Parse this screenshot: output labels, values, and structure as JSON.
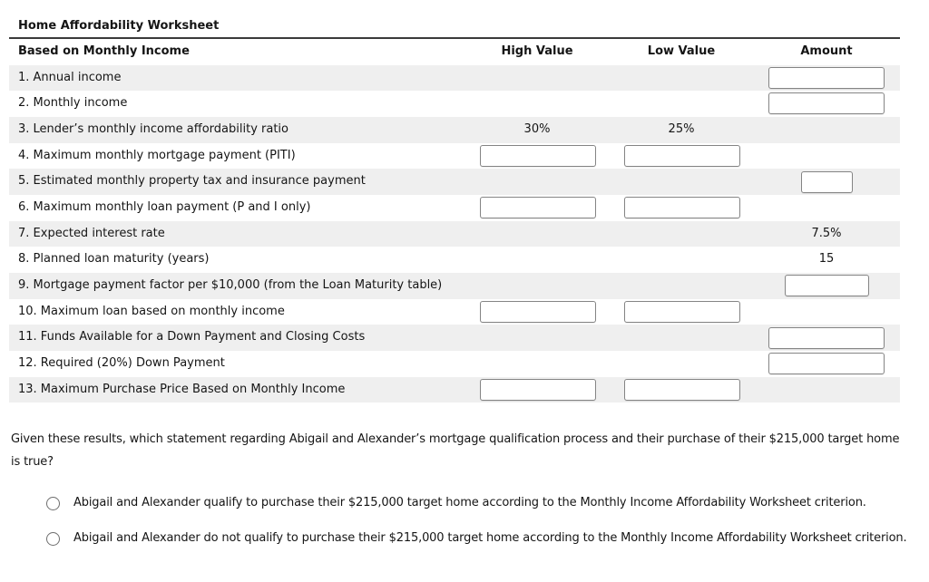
{
  "worksheet": {
    "title": "Home Affordability Worksheet",
    "header": {
      "based_label": "Based on Monthly Income",
      "high": "High Value",
      "low": "Low Value",
      "amount": "Amount"
    },
    "rows": [
      {
        "id": "annual-income",
        "label": "1. Annual income",
        "amount": {
          "kind": "input",
          "size": "lg",
          "value": ""
        }
      },
      {
        "id": "monthly-income",
        "label": "2. Monthly income",
        "amount": {
          "kind": "input",
          "size": "lg",
          "value": ""
        }
      },
      {
        "id": "affordability-ratio",
        "label": "3. Lender’s monthly income affordability ratio",
        "high": {
          "kind": "text",
          "value": "30%"
        },
        "low": {
          "kind": "text",
          "value": "25%"
        }
      },
      {
        "id": "max-piti-payment",
        "label": "4. Maximum monthly mortgage payment (PITI)",
        "high": {
          "kind": "input",
          "value": ""
        },
        "low": {
          "kind": "input",
          "value": ""
        }
      },
      {
        "id": "tax-insurance-payment",
        "label": "5. Estimated monthly property tax and insurance payment",
        "amount": {
          "kind": "input",
          "size": "sm",
          "value": ""
        }
      },
      {
        "id": "max-pi-payment",
        "label": "6. Maximum monthly loan payment (P and I only)",
        "high": {
          "kind": "input",
          "value": ""
        },
        "low": {
          "kind": "input",
          "value": ""
        }
      },
      {
        "id": "interest-rate",
        "label": "7. Expected interest rate",
        "amount": {
          "kind": "text",
          "value": "7.5%"
        }
      },
      {
        "id": "loan-maturity",
        "label": "8. Planned loan maturity (years)",
        "amount": {
          "kind": "text",
          "value": "15"
        }
      },
      {
        "id": "payment-factor",
        "label": "9. Mortgage payment factor per $10,000 (from the Loan Maturity table)",
        "amount": {
          "kind": "input",
          "size": "md",
          "value": ""
        }
      },
      {
        "id": "max-loan",
        "label": "10. Maximum loan based on monthly income",
        "high": {
          "kind": "input",
          "value": ""
        },
        "low": {
          "kind": "input",
          "value": ""
        }
      },
      {
        "id": "funds-available",
        "label": "11. Funds Available for a Down Payment and Closing Costs",
        "amount": {
          "kind": "input",
          "size": "lg",
          "value": ""
        }
      },
      {
        "id": "required-down-payment",
        "label": "12. Required (20%) Down Payment",
        "amount": {
          "kind": "input",
          "size": "lg",
          "value": ""
        }
      },
      {
        "id": "max-purchase-price",
        "label": "13. Maximum Purchase Price Based on Monthly Income",
        "high": {
          "kind": "input",
          "value": ""
        },
        "low": {
          "kind": "input",
          "value": ""
        }
      }
    ]
  },
  "question": {
    "text": "Given these results, which statement regarding Abigail and Alexander’s mortgage qualification process and their purchase of their $215,000 target home is true?",
    "options": [
      {
        "label": "Abigail and Alexander qualify to purchase their $215,000 target home according to the Monthly Income Affordability Worksheet criterion.",
        "selected": false
      },
      {
        "label": "Abigail and Alexander do not qualify to purchase their $215,000 target home according to the Monthly Income Affordability Worksheet criterion.",
        "selected": false
      }
    ]
  },
  "colors": {
    "row_stripe": "#efefef",
    "rule": "#3a3a3a",
    "input_border": "#848484",
    "text": "#151515"
  }
}
